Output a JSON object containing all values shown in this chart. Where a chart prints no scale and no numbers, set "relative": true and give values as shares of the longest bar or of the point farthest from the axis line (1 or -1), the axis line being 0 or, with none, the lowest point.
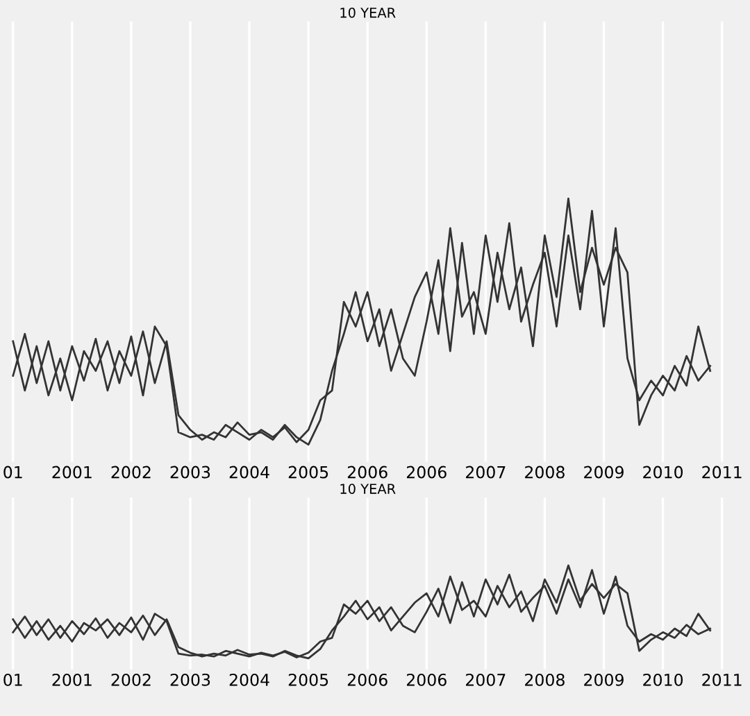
{
  "chart_data": [
    {
      "type": "line",
      "title": "10 YEAR",
      "relative": true,
      "grid": "x",
      "tick_labels": "x",
      "categories": [
        "01",
        null,
        null,
        null,
        null,
        "2001",
        null,
        null,
        null,
        null,
        "2002",
        null,
        null,
        null,
        null,
        "2003",
        null,
        null,
        null,
        null,
        "2004",
        null,
        null,
        null,
        null,
        "2005",
        null,
        null,
        null,
        null,
        "2006",
        null,
        null,
        null,
        null,
        "2006",
        null,
        null,
        null,
        null,
        "2007",
        null,
        null,
        null,
        null,
        "2008",
        null,
        null,
        null,
        null,
        "2009",
        null,
        null,
        null,
        null,
        "2010",
        null,
        null,
        null,
        null,
        "2011"
      ],
      "series": [
        {
          "color": "#333333",
          "values": [
            0.42,
            0.22,
            0.4,
            0.2,
            0.35,
            0.18,
            0.38,
            0.3,
            0.42,
            0.25,
            0.44,
            0.2,
            0.48,
            0.4,
            0.05,
            0.03,
            0.04,
            0.02,
            0.08,
            0.05,
            0.02,
            0.06,
            0.03,
            0.07,
            0.01,
            0.06,
            0.18,
            0.22,
            0.58,
            0.48,
            0.62,
            0.4,
            0.55,
            0.35,
            0.28,
            0.5,
            0.75,
            0.38,
            0.82,
            0.45,
            0.85,
            0.58,
            0.9,
            0.5,
            0.65,
            0.78,
            0.48,
            0.85,
            0.55,
            0.95,
            0.48,
            0.88,
            0.35,
            0.18,
            0.26,
            0.2,
            0.32,
            0.24,
            0.48,
            0.3,
            null
          ]
        },
        {
          "color": "#333333",
          "values": [
            0.28,
            0.45,
            0.25,
            0.42,
            0.22,
            0.4,
            0.26,
            0.43,
            0.22,
            0.38,
            0.28,
            0.46,
            0.25,
            0.42,
            0.12,
            0.06,
            0.02,
            0.05,
            0.03,
            0.09,
            0.04,
            0.05,
            0.02,
            0.08,
            0.03,
            0.0,
            0.1,
            0.3,
            0.45,
            0.62,
            0.42,
            0.55,
            0.3,
            0.45,
            0.6,
            0.7,
            0.45,
            0.88,
            0.52,
            0.62,
            0.45,
            0.78,
            0.55,
            0.72,
            0.4,
            0.85,
            0.6,
            1.0,
            0.62,
            0.8,
            0.65,
            0.8,
            0.7,
            0.08,
            0.2,
            0.28,
            0.22,
            0.36,
            0.26,
            0.32,
            null
          ]
        }
      ]
    },
    {
      "type": "line",
      "title": "10 YEAR",
      "relative": true,
      "grid": "x",
      "tick_labels": "x",
      "categories": [
        "01",
        null,
        null,
        null,
        null,
        "2001",
        null,
        null,
        null,
        null,
        "2002",
        null,
        null,
        null,
        null,
        "2003",
        null,
        null,
        null,
        null,
        "2004",
        null,
        null,
        null,
        null,
        "2005",
        null,
        null,
        null,
        null,
        "2006",
        null,
        null,
        null,
        null,
        "2006",
        null,
        null,
        null,
        null,
        "2007",
        null,
        null,
        null,
        null,
        "2008",
        null,
        null,
        null,
        null,
        "2009",
        null,
        null,
        null,
        null,
        "2010",
        null,
        null,
        null,
        null,
        "2011"
      ],
      "series": [
        {
          "color": "#333333",
          "values": [
            0.42,
            0.22,
            0.4,
            0.2,
            0.35,
            0.18,
            0.38,
            0.3,
            0.42,
            0.25,
            0.44,
            0.2,
            0.48,
            0.4,
            0.05,
            0.03,
            0.04,
            0.02,
            0.08,
            0.05,
            0.02,
            0.06,
            0.03,
            0.07,
            0.01,
            0.06,
            0.18,
            0.22,
            0.58,
            0.48,
            0.62,
            0.4,
            0.55,
            0.35,
            0.28,
            0.5,
            0.75,
            0.38,
            0.82,
            0.45,
            0.85,
            0.58,
            0.9,
            0.5,
            0.65,
            0.78,
            0.48,
            0.85,
            0.55,
            0.95,
            0.48,
            0.88,
            0.35,
            0.18,
            0.26,
            0.2,
            0.32,
            0.24,
            0.48,
            0.3,
            null
          ]
        },
        {
          "color": "#333333",
          "values": [
            0.28,
            0.45,
            0.25,
            0.42,
            0.22,
            0.4,
            0.26,
            0.43,
            0.22,
            0.38,
            0.28,
            0.46,
            0.25,
            0.42,
            0.12,
            0.06,
            0.02,
            0.05,
            0.03,
            0.09,
            0.04,
            0.05,
            0.02,
            0.08,
            0.03,
            0.0,
            0.1,
            0.3,
            0.45,
            0.62,
            0.42,
            0.55,
            0.3,
            0.45,
            0.6,
            0.7,
            0.45,
            0.88,
            0.52,
            0.62,
            0.45,
            0.78,
            0.55,
            0.72,
            0.4,
            0.85,
            0.6,
            1.0,
            0.62,
            0.8,
            0.65,
            0.8,
            0.7,
            0.08,
            0.2,
            0.28,
            0.22,
            0.36,
            0.26,
            0.32,
            null
          ]
        }
      ]
    }
  ]
}
